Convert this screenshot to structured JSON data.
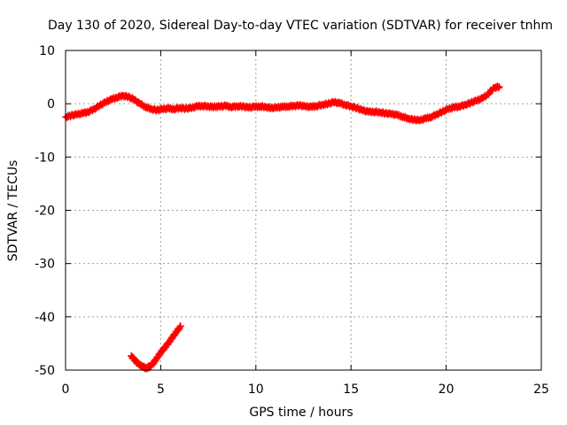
{
  "chart_data": {
    "type": "scatter",
    "title": "Day 130 of 2020, Sidereal Day-to-day VTEC variation (SDTVAR) for receiver tnhm",
    "xlabel": "GPS time / hours",
    "ylabel": "SDTVAR / TECUs",
    "xlim": [
      0,
      25
    ],
    "ylim": [
      -50,
      10
    ],
    "xticks": [
      0,
      5,
      10,
      15,
      20,
      25
    ],
    "yticks": [
      -50,
      -40,
      -30,
      -20,
      -10,
      0,
      10
    ],
    "xtick_labels": [
      "0",
      "5",
      "10",
      "15",
      "20",
      "25"
    ],
    "ytick_labels": [
      "-50",
      "-40",
      "-30",
      "-20",
      "-10",
      "0",
      "10"
    ],
    "grid": true,
    "marker": "plus",
    "series": [
      {
        "name": "main",
        "color": "#ff0000",
        "x": [
          0.0,
          0.3,
          0.6,
          0.9,
          1.2,
          1.5,
          1.8,
          2.1,
          2.4,
          2.7,
          3.0,
          3.3,
          3.6,
          3.9,
          4.2,
          4.5,
          4.8,
          5.1,
          5.4,
          5.7,
          6.0,
          6.3,
          6.6,
          6.9,
          7.2,
          7.5,
          7.8,
          8.1,
          8.4,
          8.7,
          9.0,
          9.3,
          9.6,
          9.9,
          10.2,
          10.5,
          10.8,
          11.1,
          11.4,
          11.7,
          12.0,
          12.3,
          12.6,
          12.9,
          13.2,
          13.5,
          13.8,
          14.1,
          14.4,
          14.7,
          15.0,
          15.3,
          15.6,
          15.9,
          16.2,
          16.5,
          16.8,
          17.1,
          17.4,
          17.7,
          18.0,
          18.3,
          18.6,
          18.9,
          19.2,
          19.5,
          19.8,
          20.1,
          20.4,
          20.7,
          21.0,
          21.3,
          21.6,
          21.9,
          22.2,
          22.5,
          22.8
        ],
        "y": [
          -2.5,
          -2.2,
          -2.0,
          -1.8,
          -1.5,
          -1.0,
          -0.3,
          0.3,
          0.8,
          1.2,
          1.5,
          1.3,
          0.8,
          0.0,
          -0.6,
          -1.0,
          -1.2,
          -1.0,
          -0.9,
          -1.0,
          -0.8,
          -0.9,
          -0.8,
          -0.5,
          -0.4,
          -0.5,
          -0.6,
          -0.5,
          -0.4,
          -0.6,
          -0.5,
          -0.5,
          -0.7,
          -0.6,
          -0.5,
          -0.6,
          -0.8,
          -0.7,
          -0.6,
          -0.5,
          -0.4,
          -0.3,
          -0.5,
          -0.6,
          -0.4,
          -0.2,
          0.0,
          0.3,
          0.1,
          -0.2,
          -0.5,
          -0.8,
          -1.2,
          -1.5,
          -1.5,
          -1.6,
          -1.8,
          -1.9,
          -2.1,
          -2.4,
          -2.8,
          -3.0,
          -3.1,
          -2.8,
          -2.5,
          -2.0,
          -1.5,
          -1.0,
          -0.7,
          -0.5,
          -0.2,
          0.2,
          0.6,
          1.0,
          1.8,
          3.0,
          3.2
        ]
      },
      {
        "name": "low",
        "color": "#ff0000",
        "x": [
          3.45,
          3.65,
          3.85,
          4.05,
          4.25,
          4.45,
          4.65,
          4.85,
          5.05,
          5.25,
          5.45,
          5.65,
          5.85,
          6.05
        ],
        "y": [
          -47.3,
          -48.2,
          -48.9,
          -49.4,
          -49.6,
          -49.3,
          -48.5,
          -47.5,
          -46.5,
          -45.6,
          -44.7,
          -43.7,
          -42.7,
          -41.8
        ]
      }
    ]
  }
}
